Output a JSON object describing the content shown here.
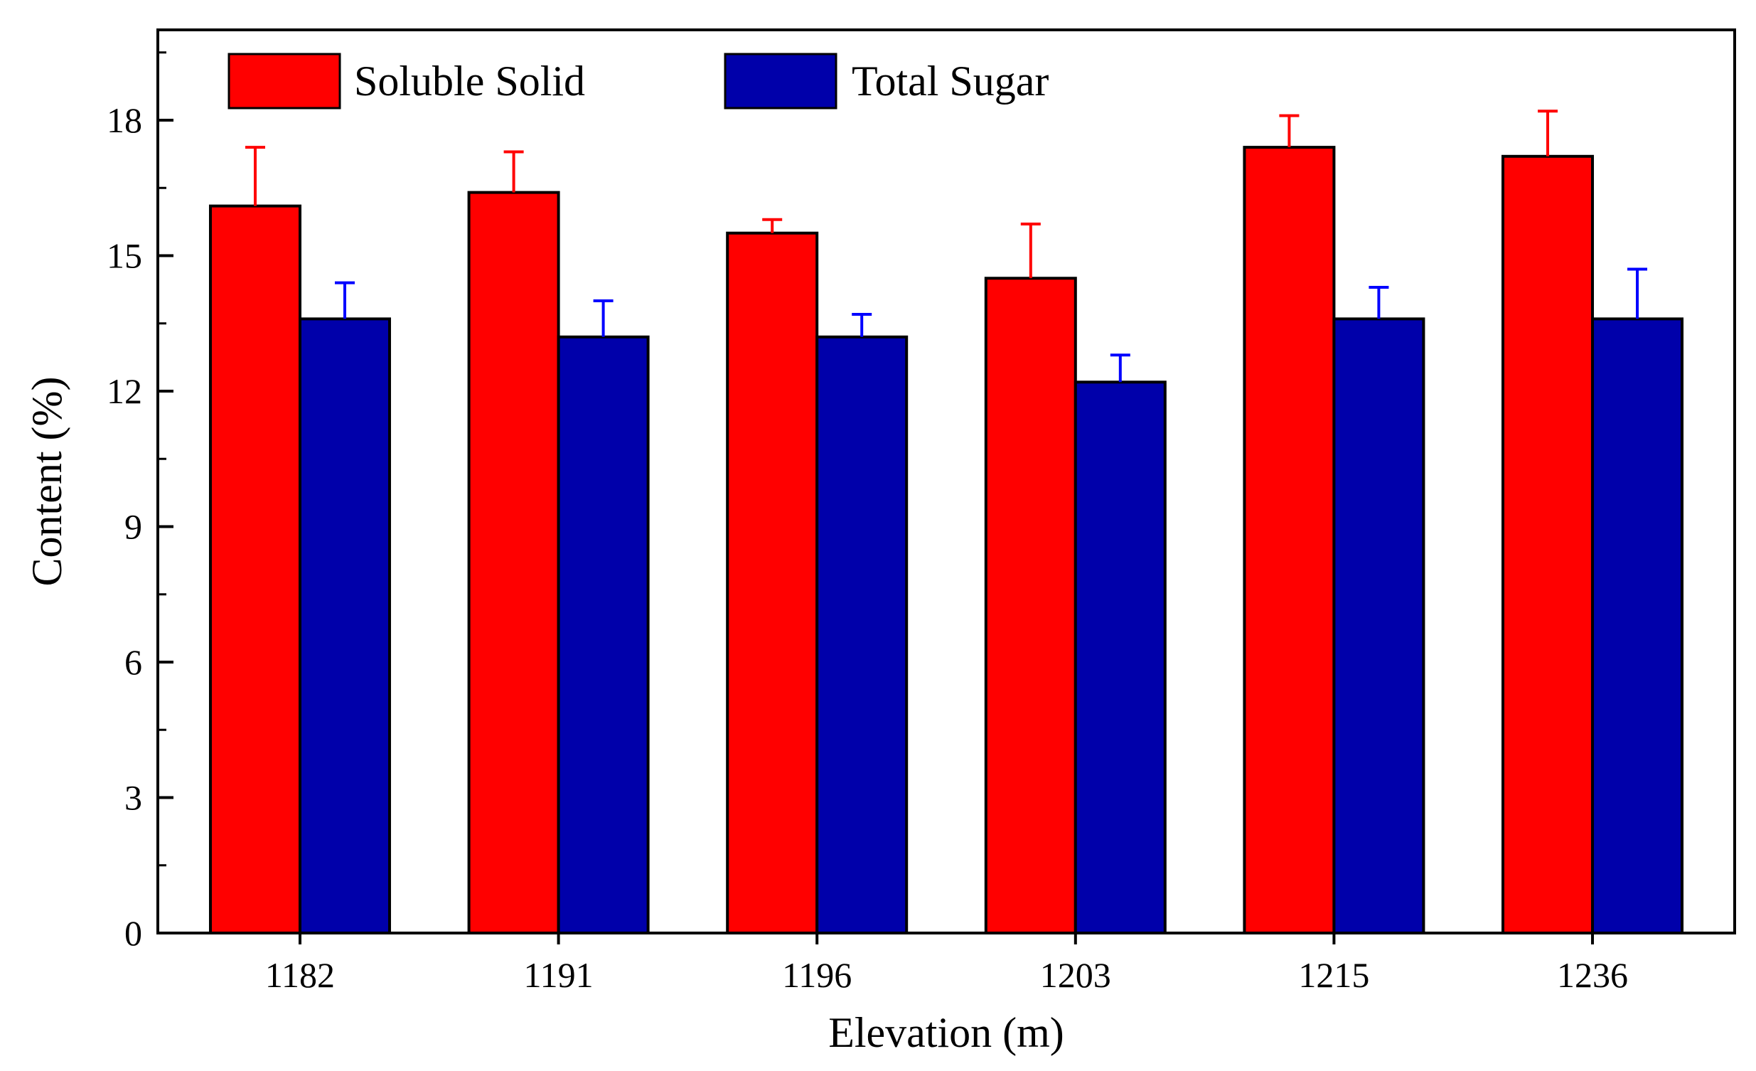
{
  "chart_data": {
    "type": "bar",
    "title": "",
    "xlabel": "Elevation (m)",
    "ylabel": "Content (%)",
    "ylim": [
      0,
      20
    ],
    "yticks": [
      0,
      3,
      6,
      9,
      12,
      15,
      18
    ],
    "ytick_labels": [
      "0",
      "3",
      "6",
      "9",
      "12",
      "15",
      "18"
    ],
    "categories": [
      "1182",
      "1191",
      "1196",
      "1203",
      "1215",
      "1236"
    ],
    "grid": false,
    "legend_position": "top-left",
    "series": [
      {
        "name": "Soluble Solid",
        "color": "#ff0000",
        "error_color": "#ff0000",
        "values": [
          16.1,
          16.4,
          15.5,
          14.5,
          17.4,
          17.2
        ],
        "errors": [
          1.3,
          0.9,
          0.3,
          1.2,
          0.7,
          1.0
        ]
      },
      {
        "name": "Total Sugar",
        "color": "#0000aa",
        "error_color": "#0000ff",
        "values": [
          13.6,
          13.2,
          13.2,
          12.2,
          13.6,
          13.6
        ],
        "errors": [
          0.8,
          0.8,
          0.5,
          0.6,
          0.7,
          1.1
        ]
      }
    ]
  }
}
